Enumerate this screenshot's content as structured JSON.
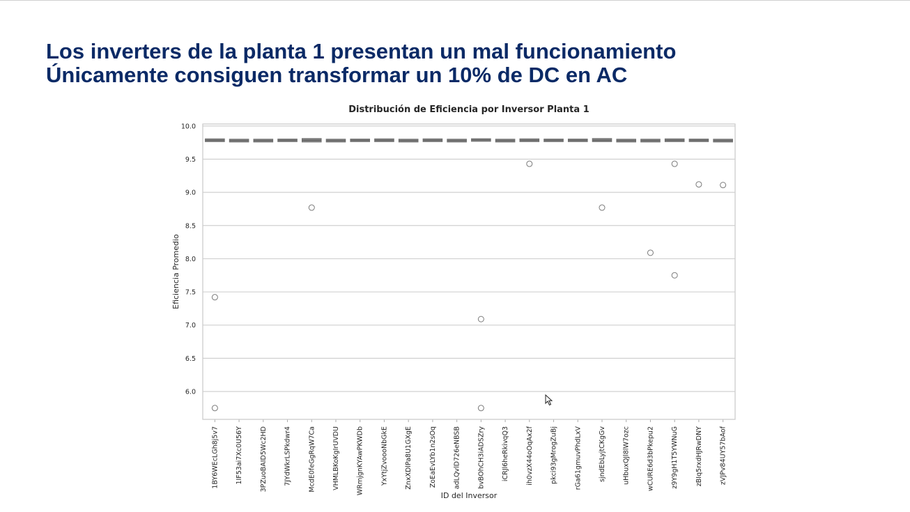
{
  "slide": {
    "title_line1": "Los inverters de la planta 1 presentan un mal funcionamiento",
    "title_line2": "Únicamente consiguen transformar un 10% de DC en AC"
  },
  "colors": {
    "title": "#0b2a66",
    "grid": "#d0d0d0",
    "frame": "#cccccc",
    "box": "#808080",
    "outlier": "#7a7a7a",
    "text": "#262626"
  },
  "chart_data": {
    "type": "box",
    "title": "Distribución de Eficiencia por Inversor Planta 1",
    "xlabel": "ID del Inversor",
    "ylabel": "Eficiencia Promedio",
    "ylim": [
      5.58,
      10.03
    ],
    "yticks": [
      "6.0",
      "6.5",
      "7.0",
      "7.5",
      "8.0",
      "8.5",
      "9.0",
      "9.5",
      "10.0"
    ],
    "grid": true,
    "legend": "none",
    "categories": [
      "1BY6WEcLGh8j5v7",
      "1IF53ai7Xc0U56Y",
      "3PZuoBAID5Wc2HD",
      "7JYdWkrLSPkdwr4",
      "McdE0feGgRqW7Ca",
      "VHMLBKoKgIrUVDU",
      "WRmjgnKYAwPKWDb",
      "YxYtjZvoooNbGkE",
      "ZnxXDlPa8U1GXgE",
      "ZoEaEvLYb1n2sOq",
      "adLQvlD726eNBSB",
      "bvBOhCH3iADSZry",
      "iCRJl6heRkivqQ3",
      "ih0vzX44oOqAx2f",
      "pkci93gMrogZuBj",
      "rGa61gmuvPhdLxV",
      "sjndEbLyjtCKgGv",
      "uHbuxQJl8lW7ozc",
      "wCURE6d3bPkepu2",
      "z9Y9gH1T5YWNuG",
      "zBIq5rxdHJRwDNY",
      "zVJPv84UY57bAof"
    ],
    "series": [
      {
        "q1": 9.775,
        "median": 9.785,
        "q3": 9.795,
        "outliers": [
          7.42,
          5.75
        ]
      },
      {
        "q1": 9.77,
        "median": 9.78,
        "q3": 9.79,
        "outliers": []
      },
      {
        "q1": 9.77,
        "median": 9.78,
        "q3": 9.79,
        "outliers": []
      },
      {
        "q1": 9.775,
        "median": 9.785,
        "q3": 9.792,
        "outliers": []
      },
      {
        "q1": 9.77,
        "median": 9.785,
        "q3": 9.8,
        "outliers": [
          8.77
        ]
      },
      {
        "q1": 9.77,
        "median": 9.78,
        "q3": 9.79,
        "outliers": []
      },
      {
        "q1": 9.775,
        "median": 9.785,
        "q3": 9.792,
        "outliers": []
      },
      {
        "q1": 9.775,
        "median": 9.785,
        "q3": 9.795,
        "outliers": []
      },
      {
        "q1": 9.77,
        "median": 9.78,
        "q3": 9.79,
        "outliers": []
      },
      {
        "q1": 9.775,
        "median": 9.785,
        "q3": 9.795,
        "outliers": []
      },
      {
        "q1": 9.77,
        "median": 9.78,
        "q3": 9.79,
        "outliers": []
      },
      {
        "q1": 9.78,
        "median": 9.79,
        "q3": 9.797,
        "outliers": [
          7.09,
          5.75
        ]
      },
      {
        "q1": 9.77,
        "median": 9.78,
        "q3": 9.79,
        "outliers": []
      },
      {
        "q1": 9.775,
        "median": 9.785,
        "q3": 9.795,
        "outliers": [
          9.43
        ]
      },
      {
        "q1": 9.775,
        "median": 9.785,
        "q3": 9.792,
        "outliers": []
      },
      {
        "q1": 9.775,
        "median": 9.785,
        "q3": 9.792,
        "outliers": []
      },
      {
        "q1": 9.775,
        "median": 9.785,
        "q3": 9.8,
        "outliers": [
          8.77
        ]
      },
      {
        "q1": 9.77,
        "median": 9.78,
        "q3": 9.79,
        "outliers": []
      },
      {
        "q1": 9.77,
        "median": 9.78,
        "q3": 9.79,
        "outliers": [
          8.09
        ]
      },
      {
        "q1": 9.775,
        "median": 9.785,
        "q3": 9.795,
        "outliers": [
          9.43,
          7.75
        ]
      },
      {
        "q1": 9.775,
        "median": 9.785,
        "q3": 9.792,
        "outliers": [
          9.12
        ]
      },
      {
        "q1": 9.77,
        "median": 9.78,
        "q3": 9.79,
        "outliers": [
          9.11
        ]
      }
    ]
  },
  "cursor": "mouse-pointer-icon"
}
